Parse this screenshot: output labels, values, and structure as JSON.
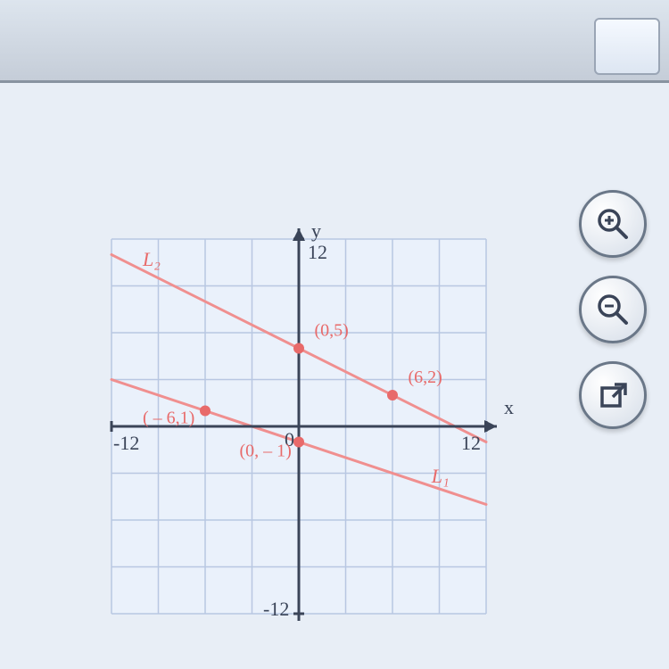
{
  "chart": {
    "type": "line",
    "background_color": "#eaf1fb",
    "grid_color": "#b8c7e2",
    "axis_color": "#3a4458",
    "line_color": "#f08f8f",
    "point_color": "#e86a6a",
    "label_color": "#e86a6a",
    "tick_color": "#3a4458",
    "xlim": [
      -12,
      12
    ],
    "ylim": [
      -12,
      12
    ],
    "tick_step": 3,
    "axis_labels": {
      "x": "x",
      "y": "y"
    },
    "tick_labels": {
      "x_min": "-12",
      "x_max": "12",
      "y_min": "-12",
      "y_max": "12"
    },
    "lines": [
      {
        "name": "L1",
        "label": "L₁",
        "points_for_slope": [
          [
            -6,
            1
          ],
          [
            0,
            -1
          ]
        ],
        "label_pos": [
          8.5,
          -3.6
        ]
      },
      {
        "name": "L2",
        "label": "L₂",
        "points_for_slope": [
          [
            0,
            5
          ],
          [
            6,
            2
          ]
        ],
        "label_pos": [
          -10,
          10.3
        ]
      }
    ],
    "marked_points": [
      {
        "coords": [
          0,
          5
        ],
        "label": "(0,5)",
        "label_offset": [
          1.0,
          0.8
        ]
      },
      {
        "coords": [
          6,
          2
        ],
        "label": "(6,2)",
        "label_offset": [
          1.0,
          0.8
        ]
      },
      {
        "coords": [
          -6,
          1
        ],
        "label": "( – 6,1)",
        "label_offset": [
          -4.0,
          -0.8
        ]
      },
      {
        "coords": [
          0,
          -1
        ],
        "label": "(0, – 1)",
        "label_offset": [
          -3.8,
          -0.9
        ]
      }
    ],
    "origin_label": "0",
    "label_fontsize": 20,
    "tick_fontsize": 22,
    "axis_fontsize": 22
  },
  "controls": {
    "zoom_in": "zoom-in",
    "zoom_out": "zoom-out",
    "popout": "popout"
  }
}
